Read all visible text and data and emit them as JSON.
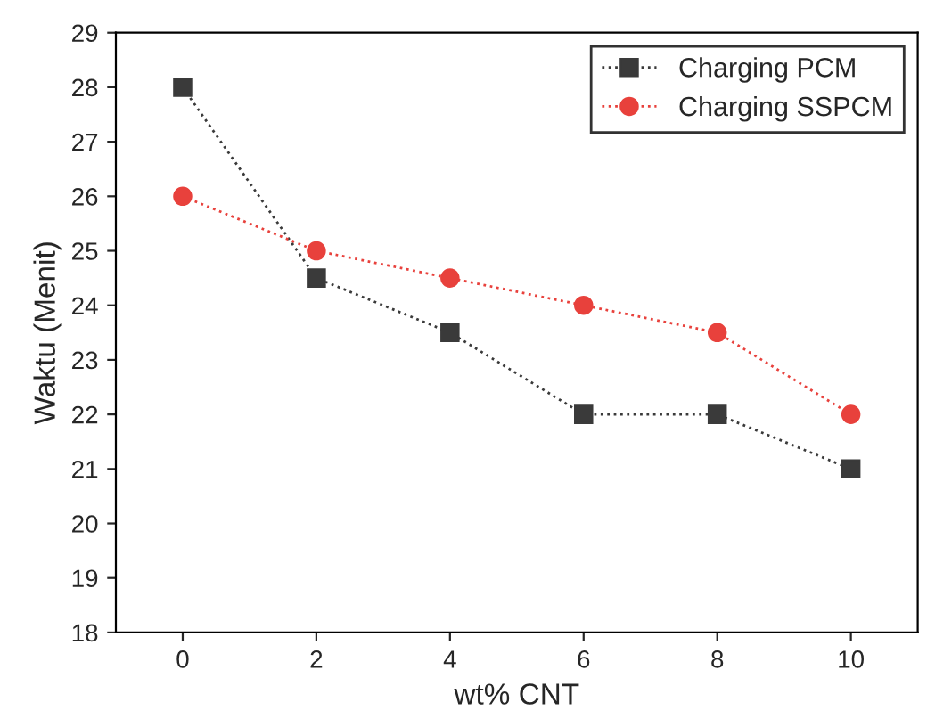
{
  "chart_data": {
    "type": "line",
    "xlabel": "wt% CNT",
    "ylabel": "Waktu (Menit)",
    "x": [
      0,
      2,
      4,
      6,
      8,
      10
    ],
    "series": [
      {
        "name": "Charging PCM",
        "color": "#3a3a3a",
        "marker": "square",
        "values": [
          28,
          24.5,
          23.5,
          22,
          22,
          21
        ]
      },
      {
        "name": "Charging SSPCM",
        "color": "#e8413c",
        "marker": "circle",
        "values": [
          26,
          25,
          24.5,
          24,
          23.5,
          22
        ]
      }
    ],
    "xlim": [
      -1,
      11
    ],
    "xticks": [
      0,
      2,
      4,
      6,
      8,
      10
    ],
    "ylim": [
      18,
      29
    ],
    "yticks": [
      18,
      19,
      20,
      21,
      22,
      23,
      24,
      25,
      26,
      27,
      28,
      29
    ],
    "line_style": "dotted",
    "grid": false,
    "legend": "top right"
  }
}
